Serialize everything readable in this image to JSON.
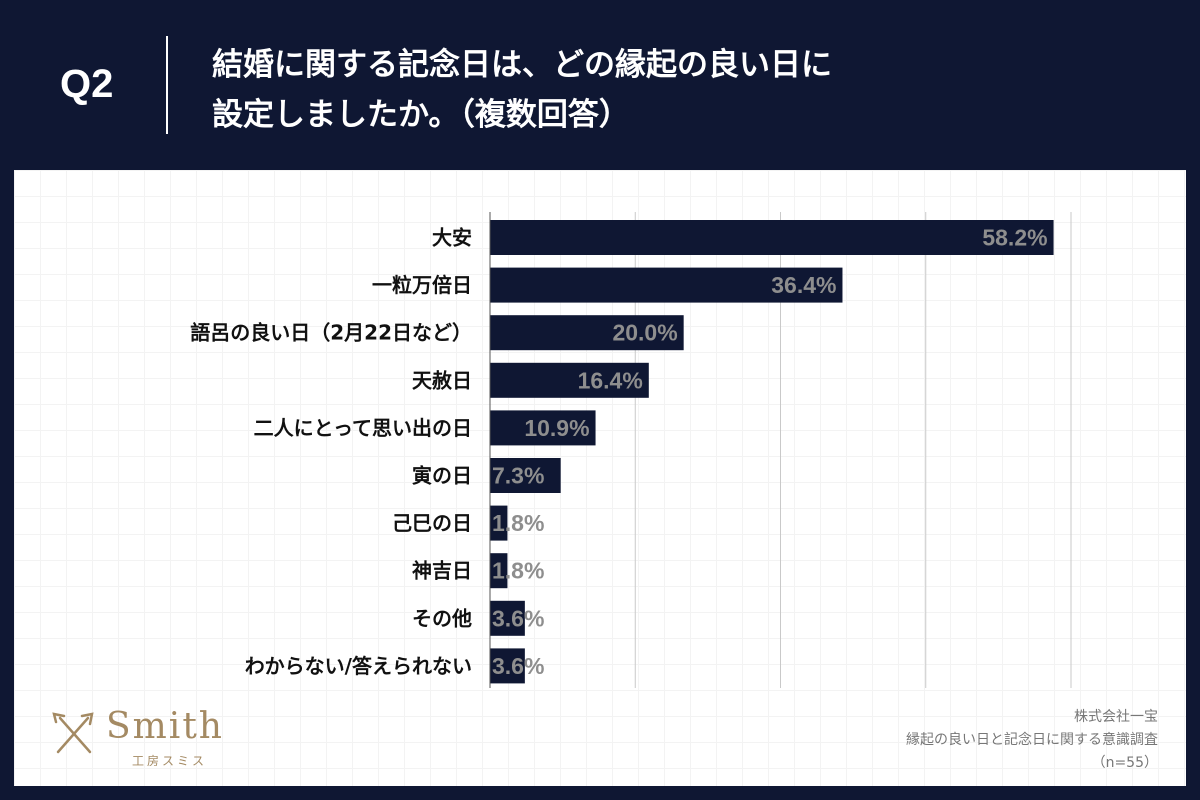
{
  "header": {
    "question_number": "Q2",
    "title_line1": "結婚に関する記念日は、どの縁起の良い日に",
    "title_line2": "設定しましたか。（複数回答）"
  },
  "chart_data": {
    "type": "bar",
    "orientation": "horizontal",
    "categories": [
      "大安",
      "一粒万倍日",
      "語呂の良い日（2月22日など）",
      "天赦日",
      "二人にとって思い出の日",
      "寅の日",
      "己巳の日",
      "神吉日",
      "その他",
      "わからない/答えられない"
    ],
    "values": [
      58.2,
      36.4,
      20.0,
      16.4,
      10.9,
      7.3,
      1.8,
      1.8,
      3.6,
      3.6
    ],
    "value_labels": [
      "58.2%",
      "36.4%",
      "20.0%",
      "16.4%",
      "10.9%",
      "7.3%",
      "1.8%",
      "1.8%",
      "3.6%",
      "3.6%"
    ],
    "xlim": [
      0,
      60
    ],
    "gridlines_at": [
      15,
      30,
      45,
      60
    ],
    "bar_color": "#0f1733",
    "label_color": "#8e8e8e",
    "unit": "%"
  },
  "footer": {
    "logo_name": "Smith",
    "logo_sub": "工房スミス",
    "source_company": "株式会社一宝",
    "source_survey": "縁起の良い日と記念日に関する意識調査",
    "sample_size": "（n=55）"
  },
  "colors": {
    "background": "#0f1733",
    "panel": "#ffffff",
    "accent_gold": "#a48a63"
  }
}
